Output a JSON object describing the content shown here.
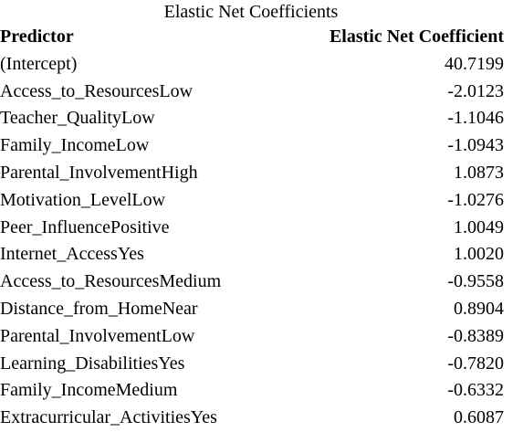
{
  "caption": "Elastic Net Coefficients",
  "headers": {
    "predictor": "Predictor",
    "coefficient": "Elastic Net Coefficient"
  },
  "rows": [
    {
      "predictor": "(Intercept)",
      "coefficient": "40.7199"
    },
    {
      "predictor": "Access_to_ResourcesLow",
      "coefficient": "-2.0123"
    },
    {
      "predictor": "Teacher_QualityLow",
      "coefficient": "-1.1046"
    },
    {
      "predictor": "Family_IncomeLow",
      "coefficient": "-1.0943"
    },
    {
      "predictor": "Parental_InvolvementHigh",
      "coefficient": "1.0873"
    },
    {
      "predictor": "Motivation_LevelLow",
      "coefficient": "-1.0276"
    },
    {
      "predictor": "Peer_InfluencePositive",
      "coefficient": "1.0049"
    },
    {
      "predictor": "Internet_AccessYes",
      "coefficient": "1.0020"
    },
    {
      "predictor": "Access_to_ResourcesMedium",
      "coefficient": "-0.9558"
    },
    {
      "predictor": "Distance_from_HomeNear",
      "coefficient": "0.8904"
    },
    {
      "predictor": "Parental_InvolvementLow",
      "coefficient": "-0.8389"
    },
    {
      "predictor": "Learning_DisabilitiesYes",
      "coefficient": "-0.7820"
    },
    {
      "predictor": "Family_IncomeMedium",
      "coefficient": "-0.6332"
    },
    {
      "predictor": "Extracurricular_ActivitiesYes",
      "coefficient": "0.6087"
    }
  ]
}
